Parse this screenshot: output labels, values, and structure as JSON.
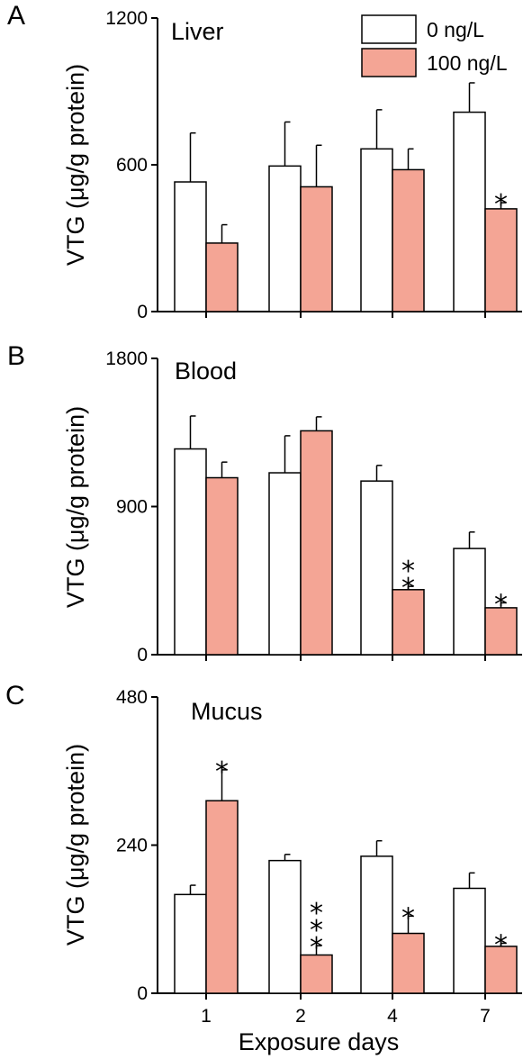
{
  "legend": [
    {
      "label": "0 ng/L",
      "color": "#ffffff"
    },
    {
      "label": "100 ng/L",
      "color": "#f4a595"
    }
  ],
  "xlabel": "Exposure days",
  "chart_data": [
    {
      "type": "bar",
      "letter": "A",
      "title": "Liver",
      "ylabel": "VTG (μg/g protein)",
      "ylim": [
        0,
        1200
      ],
      "yticks": [
        0,
        600,
        1200
      ],
      "categories": [
        "1",
        "2",
        "4",
        "7"
      ],
      "series": [
        {
          "name": "0 ng/L",
          "color": "#ffffff",
          "values": [
            530,
            595,
            665,
            815
          ],
          "errors": [
            200,
            180,
            160,
            120
          ]
        },
        {
          "name": "100 ng/L",
          "color": "#f4a595",
          "values": [
            280,
            510,
            580,
            420
          ],
          "errors": [
            75,
            170,
            85,
            25
          ]
        }
      ],
      "significance": [
        "",
        "",
        "",
        "*"
      ]
    },
    {
      "type": "bar",
      "letter": "B",
      "title": "Blood",
      "ylabel": "VTG (μg/g protein)",
      "ylim": [
        0,
        1800
      ],
      "yticks": [
        0,
        900,
        1800
      ],
      "categories": [
        "1",
        "2",
        "4",
        "7"
      ],
      "series": [
        {
          "name": "0 ng/L",
          "color": "#ffffff",
          "values": [
            1250,
            1105,
            1055,
            645
          ],
          "errors": [
            200,
            225,
            95,
            100
          ]
        },
        {
          "name": "100 ng/L",
          "color": "#f4a595",
          "values": [
            1075,
            1360,
            395,
            285
          ],
          "errors": [
            95,
            85,
            20,
            30
          ]
        }
      ],
      "significance": [
        "",
        "",
        "**",
        "*"
      ]
    },
    {
      "type": "bar",
      "letter": "C",
      "title": "Mucus",
      "ylabel": "VTG (μg/g protein)",
      "ylim": [
        0,
        480
      ],
      "yticks": [
        0,
        240,
        480
      ],
      "categories": [
        "1",
        "2",
        "4",
        "7"
      ],
      "series": [
        {
          "name": "0 ng/L",
          "color": "#ffffff",
          "values": [
            160,
            215,
            222,
            170
          ],
          "errors": [
            15,
            10,
            25,
            25
          ]
        },
        {
          "name": "100 ng/L",
          "color": "#f4a595",
          "values": [
            312,
            62,
            97,
            76
          ],
          "errors": [
            50,
            15,
            28,
            5
          ]
        }
      ],
      "significance": [
        "*",
        "***",
        "*",
        "*"
      ]
    }
  ]
}
